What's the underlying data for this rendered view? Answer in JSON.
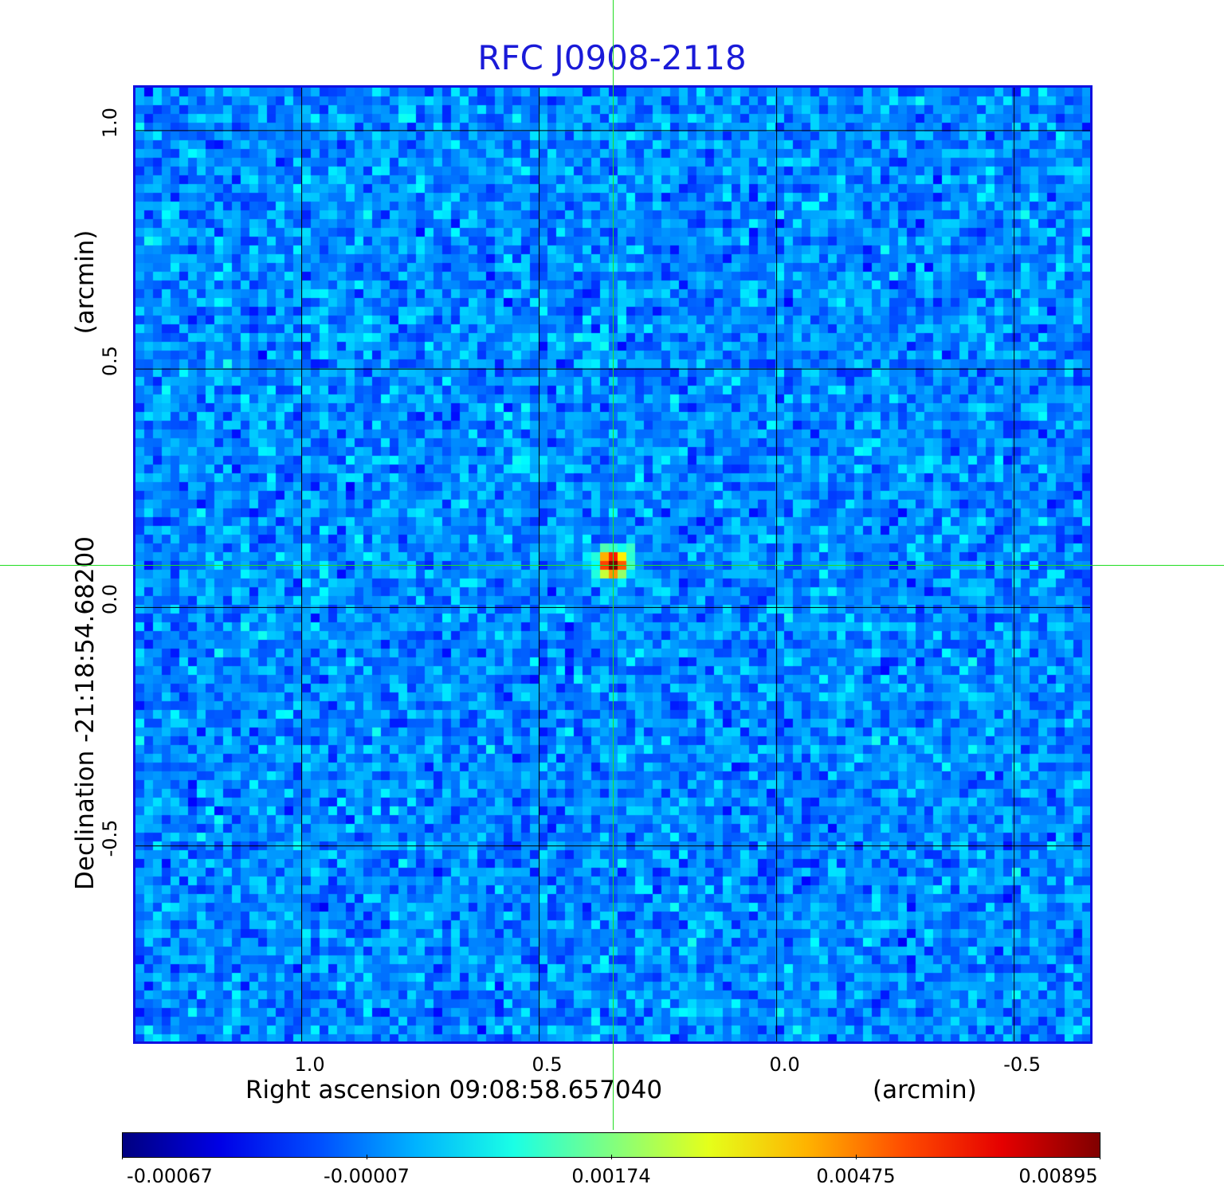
{
  "chart_data": {
    "type": "heatmap",
    "title": "RFC J0908-2118",
    "xlabel": "Right ascension  09:08:58.657040",
    "xunit": "(arcmin)",
    "ylabel": "Declination  -21:18:54.68200",
    "yunit": "(arcmin)",
    "xlim": [
      1.35,
      -0.66
    ],
    "ylim": [
      -0.91,
      1.09
    ],
    "x_ticks": [
      "1.0",
      "0.5",
      "0.0",
      "-0.5"
    ],
    "x_tick_values": [
      1.0,
      0.5,
      0.0,
      -0.5
    ],
    "y_ticks": [
      "1.0",
      "0.5",
      "0.0",
      "-0.5"
    ],
    "y_tick_values": [
      1.0,
      0.5,
      0.0,
      -0.5
    ],
    "grid": true,
    "source": {
      "x": 0.345,
      "y": 0.09,
      "peak": 0.00895
    },
    "crosshair": {
      "x": 0.345,
      "y": 0.09
    },
    "colorbar": {
      "ticks": [
        "-0.00067",
        "-0.00007",
        "0.00174",
        "0.00475",
        "0.00895"
      ],
      "tick_values": [
        -0.00067,
        -7e-05,
        0.00174,
        0.00475,
        0.00895
      ],
      "colormap": "jet"
    },
    "colors": {
      "title": "#1a1ad8",
      "frame": "#1010e0",
      "crosshair": "#22dd22"
    }
  }
}
